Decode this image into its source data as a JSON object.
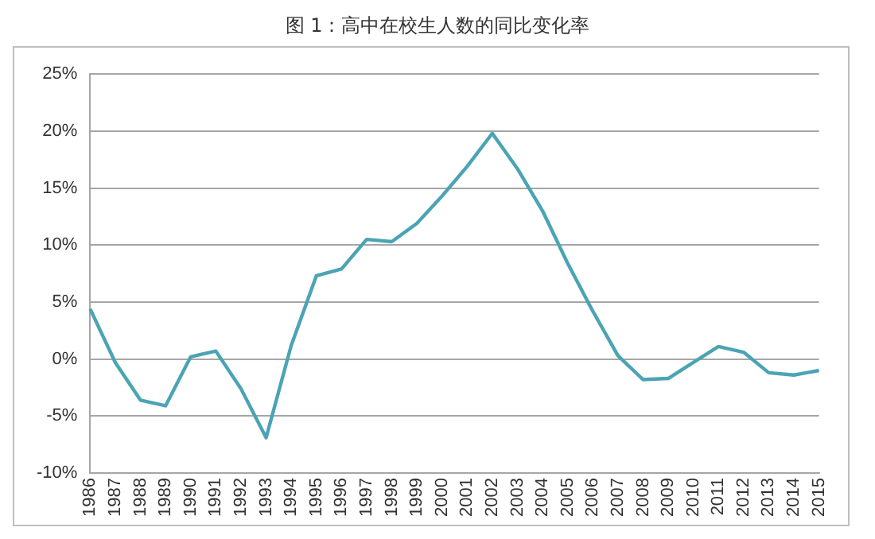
{
  "chart_data": {
    "type": "line",
    "title": "图 1：高中在校生人数的同比变化率",
    "categories": [
      "1986",
      "1987",
      "1988",
      "1989",
      "1990",
      "1991",
      "1992",
      "1993",
      "1994",
      "1995",
      "1996",
      "1997",
      "1998",
      "1999",
      "2000",
      "2001",
      "2002",
      "2003",
      "2004",
      "2005",
      "2006",
      "2007",
      "2008",
      "2009",
      "2010",
      "2011",
      "2012",
      "2013",
      "2014",
      "2015"
    ],
    "series": [
      {
        "color": "#4ba4b4",
        "values": [
          4.4,
          -0.3,
          -3.6,
          -4.1,
          0.2,
          0.7,
          -2.6,
          -6.9,
          1.2,
          7.3,
          7.9,
          10.5,
          10.3,
          11.9,
          14.3,
          16.9,
          19.8,
          16.7,
          13.0,
          8.4,
          4.2,
          0.3,
          -1.8,
          -1.7,
          -0.3,
          1.1,
          0.6,
          -1.2,
          -1.4,
          -1.0
        ]
      }
    ],
    "ylim": [
      -10,
      25
    ],
    "yticks": [
      {
        "value": -10,
        "label": "-10%"
      },
      {
        "value": -5,
        "label": "-5%"
      },
      {
        "value": 0,
        "label": "0%"
      },
      {
        "value": 5,
        "label": "5%"
      },
      {
        "value": 10,
        "label": "10%"
      },
      {
        "value": 15,
        "label": "15%"
      },
      {
        "value": 20,
        "label": "20%"
      },
      {
        "value": 25,
        "label": "25%"
      }
    ],
    "grid": "y",
    "legend": false,
    "marker": "none",
    "line_style": "solid"
  }
}
